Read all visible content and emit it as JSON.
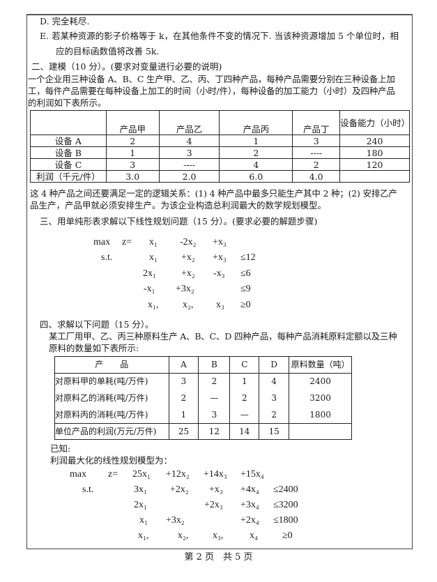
{
  "options": {
    "d": "D. 完全耗尽.",
    "e1": "E. 若某种资源的影子价格等于 k，在其他条件不变的情况下. 当该种资源增加 5 个单位时，相",
    "e2": "应的目标函数值将改善 5k."
  },
  "q2": {
    "title": "二、建模（10 分）。(要求对变量进行必要的说明)",
    "para": [
      "一个企业用三种设备 A、B、C 生产甲、乙、丙、丁四种产品，每种产品需要分别在三种设备上加",
      "工，每件产品需要在每种设备上加工的时间（小时/件），每种设备的加工能力（小时）及四种产品",
      "的利润如下表所示。"
    ],
    "table": {
      "headers": [
        "",
        "产品甲",
        "产品乙",
        "产品丙",
        "产品丁",
        "设备能力（小时）"
      ],
      "rows": [
        [
          "设备 A",
          "2",
          "4",
          "1",
          "3",
          "240"
        ],
        [
          "设备 B",
          "1",
          "3",
          "2",
          "----",
          "180"
        ],
        [
          "设备 C",
          "3",
          "----",
          "4",
          "2",
          "120"
        ],
        [
          "利润（千元/件）",
          "3.0",
          "2.0",
          "6.0",
          "4.0",
          ""
        ]
      ]
    },
    "after": [
      "这 4 种产品之间还要满足一定的逻辑关系：(1) 4 种产品中最多只能生产其中 2 种；(2) 安排乙产",
      "品生产，产品甲就必须安排生产。为该企业构造总利润最大的数学规划模型。"
    ]
  },
  "q3": {
    "title": "三、用单纯形表求解以下线性规划问题（15 分）。(要求必要的解题步骤)",
    "lp": [
      [
        "max",
        "z=",
        "x₁",
        "-2x₂",
        "+x₃",
        ""
      ],
      [
        "s.t.",
        "",
        "x₁",
        "+x₂",
        "+x₃",
        "≤12"
      ],
      [
        "",
        "",
        "2x₁",
        "+x₂",
        "-x₃",
        "≤6"
      ],
      [
        "",
        "",
        "-x₁",
        "+3x₂",
        "",
        "≤9"
      ],
      [
        "",
        "",
        "x₁,",
        "x₂,",
        "x₃",
        "≥0"
      ]
    ]
  },
  "q4": {
    "title": "四、求解以下问题（15 分）。",
    "para": [
      "某工厂用甲、乙、丙三种原料生产 A、B、C、D 四种产品，每种产品消耗原料定额以及三种",
      "原料的数量如下表所示:"
    ],
    "table": {
      "headers": [
        "产　　品",
        "A",
        "B",
        "C",
        "D",
        "原料数量（吨）"
      ],
      "rows": [
        [
          "对原料甲的单耗(吨/万件)",
          "3",
          "2",
          "1",
          "4",
          "2400"
        ],
        [
          "对原料乙的消耗(吨/万件)",
          "2",
          "—",
          "2",
          "3",
          "3200"
        ],
        [
          "对原料丙的消耗(吨/万件)",
          "1",
          "3",
          "—",
          "2",
          "1800"
        ],
        [
          "单位产品的利润(万元/万件)",
          "25",
          "12",
          "14",
          "15",
          ""
        ]
      ]
    },
    "known": "已知:",
    "model_intro": "利润最大化的线性规划模型为：",
    "lp": [
      [
        "max",
        "z=",
        "25x₁",
        "+12x₂",
        "+14x₃",
        "+15x₄",
        ""
      ],
      [
        "s.t.",
        "",
        "3x₁",
        "+2x₂",
        "+x₃",
        "+4x₄",
        "≤2400"
      ],
      [
        "",
        "",
        "2x₁",
        "",
        "+2x₃",
        "+3x₄",
        "≤3200"
      ],
      [
        "",
        "",
        "x₁",
        "+3x₂",
        "",
        "+2x₄",
        "≤1800"
      ],
      [
        "",
        "",
        "x₁,",
        "x₂,",
        "x₃,",
        "x₄",
        "≥0"
      ]
    ]
  },
  "footer": "第 2 页　共 5 页"
}
